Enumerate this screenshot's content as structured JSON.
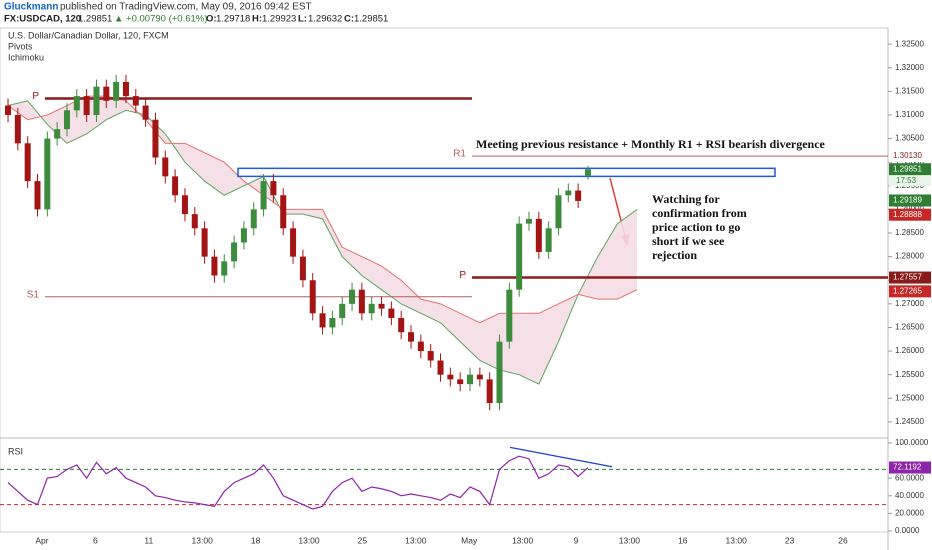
{
  "header": {
    "author": "Gluckmann",
    "published": "published on TradingView.com, May 09, 2016 09:42 EST",
    "symbol": "FX:USDCAD, 120",
    "change": "▲ +0.00790 (+0.61%)",
    "o": "O:",
    "h": "H:",
    "l": "L:",
    "c": "C:"
  },
  "chart_data": {
    "type": "candlestick",
    "title": "U.S. Dollar/Canadian Dollar, 120, FXCM",
    "indicators": [
      "Pivots",
      "Ichimoku"
    ],
    "x_labels": [
      "Apr",
      "6",
      "11",
      "13:00",
      "18",
      "13:00",
      "25",
      "13:00",
      "May",
      "13:00",
      "9",
      "13:00",
      "16",
      "13:00",
      "23",
      "26"
    ],
    "up_color": "#3d8b3d",
    "down_color": "#a31515",
    "candles": {
      "open": [
        1.312,
        1.31,
        1.304,
        1.296,
        1.29,
        1.305,
        1.307,
        1.311,
        1.314,
        1.31,
        1.316,
        1.313,
        1.317,
        1.314,
        1.312,
        1.309,
        1.301,
        1.297,
        1.293,
        1.289,
        1.286,
        1.28,
        1.276,
        1.279,
        1.283,
        1.286,
        1.29,
        1.296,
        1.293,
        1.286,
        1.28,
        1.275,
        1.268,
        1.265,
        1.267,
        1.27,
        1.273,
        1.268,
        1.27,
        1.269,
        1.267,
        1.264,
        1.262,
        1.26,
        1.258,
        1.255,
        1.254,
        1.253,
        1.255,
        1.254,
        1.249,
        1.262,
        1.273,
        1.287,
        1.288,
        1.281,
        1.286,
        1.293,
        1.294,
        1.29718
      ],
      "high": [
        1.3135,
        1.3115,
        1.3055,
        1.2975,
        1.3065,
        1.3085,
        1.3125,
        1.3155,
        1.3155,
        1.3175,
        1.3175,
        1.3185,
        1.3185,
        1.3155,
        1.3135,
        1.3105,
        1.3025,
        1.2985,
        1.2945,
        1.2905,
        1.2875,
        1.2815,
        1.2805,
        1.2845,
        1.2875,
        1.2915,
        1.2975,
        1.2975,
        1.2945,
        1.2875,
        1.2815,
        1.2765,
        1.2695,
        1.2685,
        1.2715,
        1.2745,
        1.2745,
        1.2715,
        1.2715,
        1.2705,
        1.2685,
        1.2655,
        1.2635,
        1.2615,
        1.2595,
        1.2565,
        1.2555,
        1.2565,
        1.2565,
        1.2555,
        1.2635,
        1.2745,
        1.2885,
        1.2895,
        1.2895,
        1.2875,
        1.2945,
        1.2955,
        1.2955,
        1.29923
      ],
      "low": [
        1.3085,
        1.3025,
        1.2945,
        1.2885,
        1.2885,
        1.3035,
        1.3055,
        1.3095,
        1.3085,
        1.3085,
        1.3115,
        1.3115,
        1.3125,
        1.3105,
        1.3075,
        1.2995,
        1.2955,
        1.2915,
        1.2875,
        1.2845,
        1.2785,
        1.2745,
        1.2745,
        1.2775,
        1.2815,
        1.2845,
        1.2885,
        1.2915,
        1.2845,
        1.2785,
        1.2735,
        1.2665,
        1.2635,
        1.2635,
        1.2655,
        1.2685,
        1.2665,
        1.2665,
        1.2675,
        1.2655,
        1.2625,
        1.2605,
        1.2585,
        1.2565,
        1.2535,
        1.2525,
        1.2515,
        1.2515,
        1.2525,
        1.2475,
        1.2475,
        1.2605,
        1.2715,
        1.2855,
        1.2795,
        1.2795,
        1.2845,
        1.2915,
        1.2903,
        1.29632
      ],
      "close": [
        1.31,
        1.304,
        1.296,
        1.29,
        1.305,
        1.307,
        1.311,
        1.314,
        1.31,
        1.316,
        1.313,
        1.317,
        1.314,
        1.312,
        1.309,
        1.301,
        1.297,
        1.293,
        1.289,
        1.286,
        1.28,
        1.276,
        1.279,
        1.283,
        1.286,
        1.29,
        1.296,
        1.293,
        1.286,
        1.28,
        1.275,
        1.268,
        1.265,
        1.267,
        1.27,
        1.273,
        1.268,
        1.27,
        1.269,
        1.267,
        1.264,
        1.262,
        1.26,
        1.258,
        1.255,
        1.254,
        1.253,
        1.255,
        1.254,
        1.249,
        1.262,
        1.273,
        1.287,
        1.288,
        1.281,
        1.286,
        1.293,
        1.294,
        1.2918,
        1.29851
      ]
    },
    "cloud": {
      "span_a_color": "#5fa35f",
      "span_b_color": "#e57373",
      "fill": "#f3dde3",
      "span_a": [
        1.312,
        1.313,
        1.308,
        1.304,
        1.306,
        1.309,
        1.311,
        1.31,
        1.306,
        1.3,
        1.296,
        1.293,
        1.295,
        1.297,
        1.289,
        1.289,
        1.288,
        1.28,
        1.276,
        1.273,
        1.27,
        1.268,
        1.266,
        1.262,
        1.258,
        1.256,
        1.255,
        1.253,
        1.262,
        1.272,
        1.28,
        1.287,
        1.29
      ],
      "span_b": [
        1.312,
        1.309,
        1.31,
        1.312,
        1.314,
        1.314,
        1.313,
        1.309,
        1.304,
        1.304,
        1.302,
        1.3,
        1.296,
        1.293,
        1.29,
        1.29,
        1.29,
        1.282,
        1.28,
        1.278,
        1.275,
        1.271,
        1.27,
        1.268,
        1.266,
        1.268,
        1.268,
        1.268,
        1.27,
        1.272,
        1.271,
        1.271,
        1.273
      ]
    },
    "levels": [
      {
        "label": "P",
        "value": 1.3135,
        "color": "#8b1a1a"
      },
      {
        "label": "S1",
        "value": 1.2715,
        "color": "#b06060"
      },
      {
        "label": "R1",
        "value": 1.3013,
        "value_label": "1.30130",
        "color": "#b06060"
      },
      {
        "label": "P",
        "value": 1.27557,
        "color": "#8b1a1a"
      }
    ],
    "resistance_zone": {
      "top": 1.2987,
      "bottom": 1.297,
      "color": "#1e5bd6"
    },
    "price_markers": [
      {
        "value": 1.29189,
        "color": "#2e7d32"
      },
      {
        "value": 1.28888,
        "color": "#c62828"
      },
      {
        "value": 1.27265,
        "color": "#c62828"
      }
    ],
    "current_color": "#2e7d32",
    "countdown": "17:53",
    "ylim": [
      1.2418,
      1.328
    ],
    "yticks": [
      {
        "value": 1.245,
        "label": "1.24500"
      },
      {
        "value": 1.25,
        "label": "1.25000"
      },
      {
        "value": 1.255,
        "label": "1.25500"
      },
      {
        "value": 1.26,
        "label": "1.26000"
      },
      {
        "value": 1.265,
        "label": "1.26500"
      },
      {
        "value": 1.27,
        "label": "1.27000"
      },
      {
        "value": 1.275,
        "label": "1.27500"
      },
      {
        "value": 1.28,
        "label": "1.28000"
      },
      {
        "value": 1.285,
        "label": "1.28500"
      },
      {
        "value": 1.29,
        "label": "1.29000"
      },
      {
        "value": 1.295,
        "label": "1.29500"
      },
      {
        "value": 1.3,
        "label": "1.30000"
      },
      {
        "value": 1.305,
        "label": "1.30500"
      },
      {
        "value": 1.31,
        "label": "1.31000"
      },
      {
        "value": 1.315,
        "label": "1.31500"
      },
      {
        "value": 1.32,
        "label": "1.32000"
      },
      {
        "value": 1.325,
        "label": "1.32500"
      }
    ],
    "annotations": {
      "resistance": "Meeting previous resistance + Monthly R1 +  RSI  bearish divergence",
      "watch": [
        "Watching for",
        "confirmation from",
        "price action to go",
        "short if we see",
        "rejection"
      ]
    },
    "rsi": {
      "title": "RSI",
      "color": "#8e24aa",
      "overbought": 70,
      "oversold": 30,
      "divergence": [
        95,
        73
      ],
      "ylim": [
        0,
        100
      ],
      "yticks": [
        {
          "value": 0,
          "label": "0.0000"
        },
        {
          "value": 20,
          "label": "20.0000"
        },
        {
          "value": 40,
          "label": "40.0000"
        },
        {
          "value": 60,
          "label": "60.0000"
        },
        {
          "value": 100,
          "label": "100.0000"
        }
      ],
      "values": [
        55,
        45,
        35,
        30,
        60,
        62,
        70,
        75,
        60,
        78,
        65,
        72,
        60,
        55,
        50,
        40,
        38,
        35,
        33,
        32,
        30,
        28,
        45,
        55,
        60,
        65,
        75,
        60,
        40,
        35,
        30,
        25,
        28,
        45,
        55,
        60,
        45,
        50,
        48,
        45,
        40,
        42,
        40,
        38,
        35,
        42,
        38,
        50,
        45,
        30,
        70,
        80,
        85,
        82,
        60,
        65,
        75,
        73,
        62,
        72.1192
      ]
    }
  }
}
